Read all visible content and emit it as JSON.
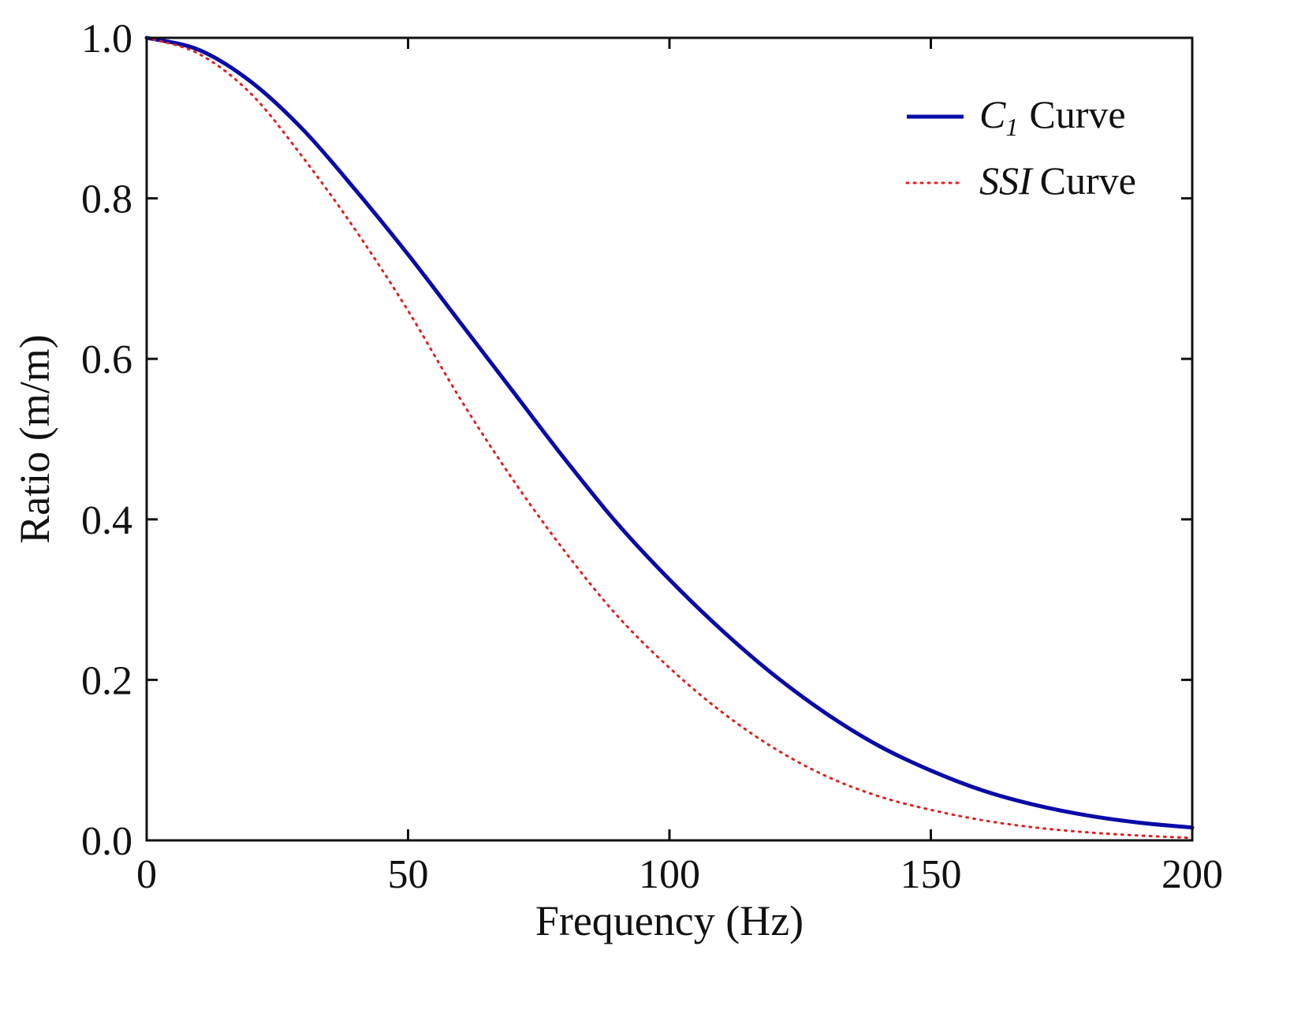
{
  "chart_data": {
    "type": "line",
    "title": "",
    "xlabel": "Frequency (Hz)",
    "ylabel": "Ratio (m/m)",
    "xlim": [
      0,
      200
    ],
    "ylim": [
      0.0,
      1.0
    ],
    "xticks": [
      0,
      50,
      100,
      150,
      200
    ],
    "xtick_labels": [
      "0",
      "50",
      "100",
      "150",
      "200"
    ],
    "yticks": [
      0.0,
      0.2,
      0.4,
      0.6,
      0.8,
      1.0
    ],
    "ytick_labels": [
      "0.0",
      "0.2",
      "0.4",
      "0.6",
      "0.8",
      "1.0"
    ],
    "grid": false,
    "legend_position": "top-right",
    "series": [
      {
        "name": "C1 Curve",
        "legend_symbol": "C",
        "legend_subscript": "1",
        "legend_suffix": "Curve",
        "style": "solid",
        "color": "#0a0aa8",
        "x": [
          0,
          10,
          20,
          30,
          40,
          50,
          60,
          70,
          80,
          90,
          100,
          110,
          120,
          130,
          140,
          150,
          160,
          170,
          180,
          190,
          200
        ],
        "y": [
          1.0,
          0.985,
          0.945,
          0.885,
          0.81,
          0.73,
          0.645,
          0.56,
          0.475,
          0.395,
          0.325,
          0.262,
          0.206,
          0.158,
          0.118,
          0.087,
          0.062,
          0.044,
          0.031,
          0.022,
          0.016
        ]
      },
      {
        "name": "SSI Curve",
        "legend_symbol": "SSI",
        "legend_suffix": "Curve",
        "style": "dotted",
        "color": "#e02020",
        "x": [
          0,
          10,
          20,
          30,
          40,
          50,
          60,
          70,
          80,
          90,
          100,
          110,
          120,
          130,
          140,
          150,
          160,
          170,
          180,
          190,
          200
        ],
        "y": [
          1.0,
          0.98,
          0.93,
          0.85,
          0.76,
          0.66,
          0.55,
          0.45,
          0.36,
          0.28,
          0.215,
          0.16,
          0.115,
          0.08,
          0.055,
          0.038,
          0.025,
          0.016,
          0.01,
          0.006,
          0.003
        ]
      }
    ]
  }
}
